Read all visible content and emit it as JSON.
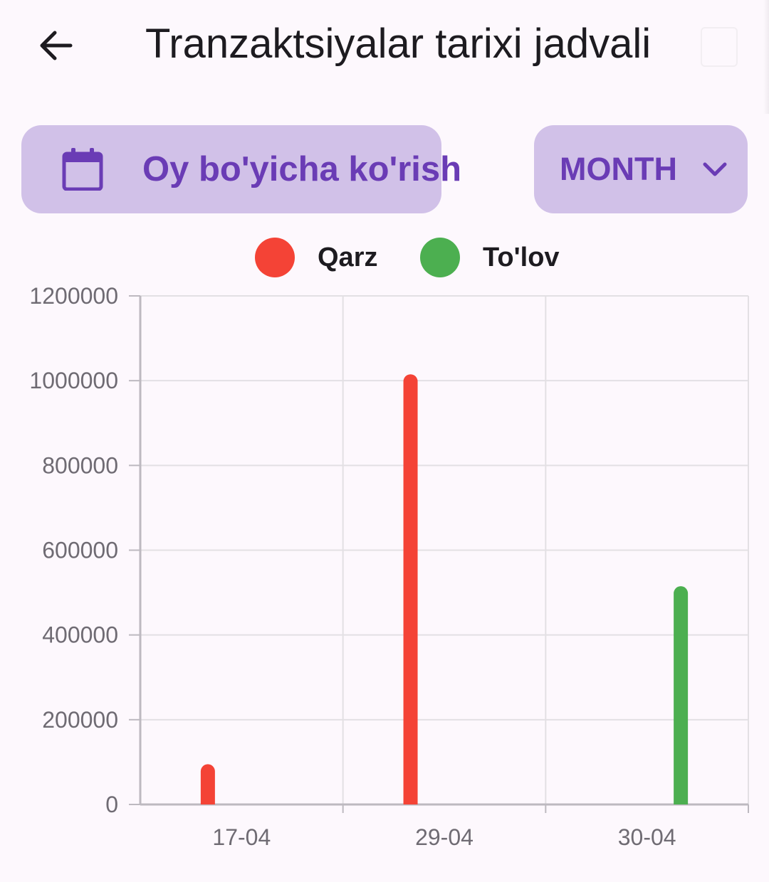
{
  "appbar": {
    "title": "Tranzaktsiyalar tarixi jadvali",
    "back_icon": "arrow-left-icon",
    "action_icon": "blank-icon"
  },
  "filters": {
    "month_button_label": "Oy bo'yicha ko'rish",
    "month_button_icon": "calendar-icon",
    "period_selected": "MONTH",
    "period_icon": "chevron-down-icon"
  },
  "colors": {
    "accent": "#6a3cb5",
    "pill_bg": "#d1c1e8",
    "qarz": "#f44336",
    "tolov": "#4caf50"
  },
  "chart_data": {
    "type": "bar",
    "categories": [
      "17-04",
      "29-04",
      "30-04"
    ],
    "series": [
      {
        "name": "Qarz",
        "color": "#f44336",
        "values": [
          95000,
          1015000,
          0
        ]
      },
      {
        "name": "To'lov",
        "color": "#4caf50",
        "values": [
          0,
          0,
          515000
        ]
      }
    ],
    "ylim": [
      0,
      1200000
    ],
    "yticks": [
      "0",
      "200000",
      "400000",
      "600000",
      "800000",
      "1000000",
      "1200000"
    ],
    "grid": true,
    "legend_position": "top-center"
  }
}
